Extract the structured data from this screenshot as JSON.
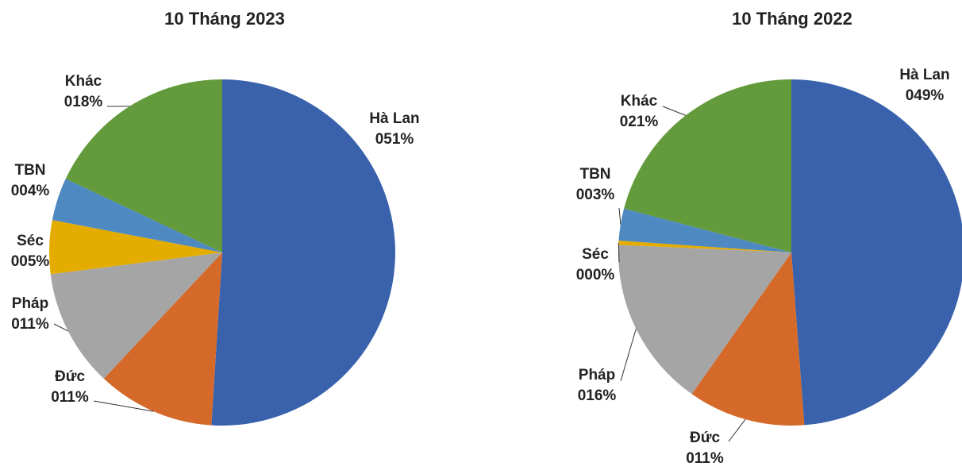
{
  "chart_data": [
    {
      "type": "pie",
      "title": "10 Tháng 2023",
      "categories": [
        "Hà Lan",
        "Đức",
        "Pháp",
        "Séc",
        "TBN",
        "Khác"
      ],
      "values": [
        51,
        11,
        11,
        5,
        4,
        18
      ],
      "value_labels": [
        "051%",
        "011%",
        "011%",
        "005%",
        "004%",
        "018%"
      ],
      "colors": [
        "#3a62ac",
        "#d4692a",
        "#a5a5a5",
        "#e5ac00",
        "#4e89c1",
        "#639b3c"
      ]
    },
    {
      "type": "pie",
      "title": "10 Tháng 2022",
      "categories": [
        "Hà Lan",
        "Đức",
        "Pháp",
        "Séc",
        "TBN",
        "Khác"
      ],
      "values": [
        49,
        11,
        16,
        0.4,
        3,
        21
      ],
      "value_labels": [
        "049%",
        "011%",
        "016%",
        "000%",
        "003%",
        "021%"
      ],
      "colors": [
        "#3a62ac",
        "#d4692a",
        "#a5a5a5",
        "#e5ac00",
        "#4e89c1",
        "#639b3c"
      ]
    }
  ]
}
